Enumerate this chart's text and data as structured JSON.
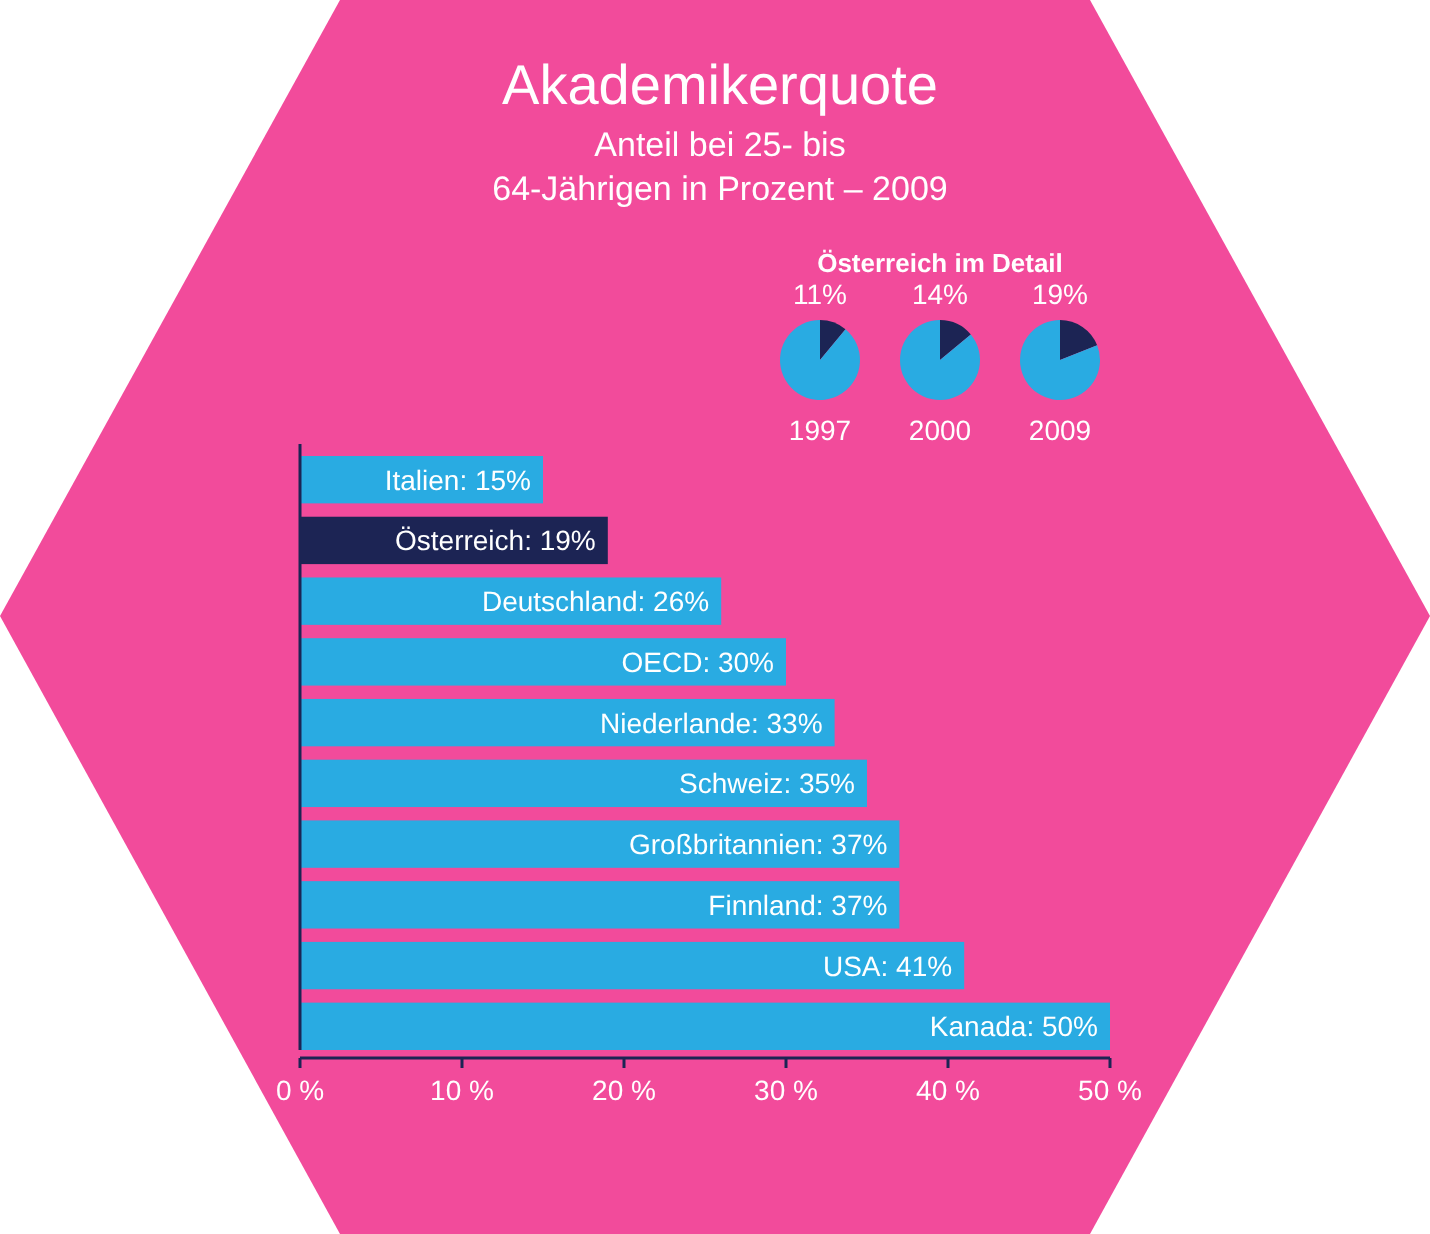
{
  "chart_data": [
    {
      "type": "bar",
      "orientation": "horizontal",
      "title": "Akademikerquote",
      "subtitle": "Anteil bei 25- bis 64-Jährigen in Prozent – 2009",
      "annotations": [
        "Österreich im Detail"
      ],
      "categories": [
        "Italien",
        "Österreich",
        "Deutschland",
        "OECD",
        "Niederlande",
        "Schweiz",
        "Großbritannien",
        "Finnland",
        "USA",
        "Kanada"
      ],
      "values": [
        15,
        19,
        26,
        30,
        33,
        35,
        37,
        37,
        41,
        50
      ],
      "value_labels": [
        ": 15%",
        ": 19%",
        ": 26%",
        ": 30%",
        ": 33%",
        ": 35%",
        ": 37%",
        ": 37%",
        ": 41%",
        ": 50%"
      ],
      "colors": [
        "#29abe2",
        "#1c2454",
        "#29abe2",
        "#29abe2",
        "#29abe2",
        "#29abe2",
        "#29abe2",
        "#29abe2",
        "#29abe2",
        "#29abe2"
      ],
      "xlim": [
        0,
        50
      ],
      "xticks": [
        {
          "value": 0,
          "label": "0 %"
        },
        {
          "value": 10,
          "label": "10 %"
        },
        {
          "value": 20,
          "label": "20 %"
        },
        {
          "value": 30,
          "label": "30 %"
        },
        {
          "value": 40,
          "label": "40 %"
        },
        {
          "value": 50,
          "label": "50 %"
        }
      ],
      "grid": false
    },
    {
      "type": "pie",
      "xlabel": "1997",
      "categories": [
        null,
        null
      ],
      "values": [
        11,
        89
      ],
      "value_labels": [
        "11%",
        null
      ],
      "colors": [
        "#1c2454",
        "#29abe2"
      ]
    },
    {
      "type": "pie",
      "xlabel": "2000",
      "categories": [
        null,
        null
      ],
      "values": [
        14,
        86
      ],
      "value_labels": [
        "14%",
        null
      ],
      "colors": [
        "#1c2454",
        "#29abe2"
      ]
    },
    {
      "type": "pie",
      "xlabel": "2009",
      "categories": [
        null,
        null
      ],
      "values": [
        19,
        81
      ],
      "value_labels": [
        "19%",
        null
      ],
      "colors": [
        "#1c2454",
        "#29abe2"
      ]
    }
  ]
}
